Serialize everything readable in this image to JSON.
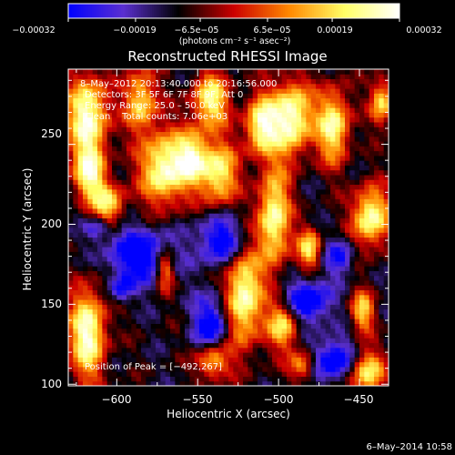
{
  "chart_data": {
    "type": "heatmap",
    "title": "Reconstructed RHESSI Image",
    "xlabel": "Heliocentric X (arcsec)",
    "ylabel": "Heliocentric Y (arcsec)",
    "xlim": [
      -630,
      -432
    ],
    "ylim": [
      99,
      297
    ],
    "x_ticks": [
      -600,
      -550,
      -500,
      -450
    ],
    "x_tick_labels": [
      "−600",
      "−550",
      "−500",
      "−450"
    ],
    "y_ticks": [
      100,
      150,
      200,
      250
    ],
    "y_tick_labels": [
      "100",
      "150",
      "200",
      "250"
    ],
    "colorbar": {
      "range": [
        -0.00032,
        0.00032
      ],
      "tick_values": [
        -0.00032,
        -0.00019,
        -6.5e-05,
        6.5e-05,
        0.00019,
        0.00032
      ],
      "tick_labels": [
        "−0.00032",
        "−0.00019",
        "−6.5e−05",
        "6.5e−05",
        "0.00019",
        "0.00032"
      ],
      "units_text": "(photons cm⁻² s⁻¹ asec⁻²)",
      "colormap": [
        "#0000ff",
        "#5a2fd0",
        "#000000",
        "#cc0000",
        "#ff8800",
        "#ffff66",
        "#ffffff"
      ]
    },
    "annotations": {
      "time_range": "8–May–2012 20:13:40.000 to 20:16:56.000",
      "detectors": "Detectors: 3F 5F 6F 7F 8F 9F, Att 0",
      "energy_range": "Energy Range: 25.0 – 50.0 keV",
      "clean_counts": "Clean    Total counts: 7.06e+03",
      "peak": "Position of Peak = [−492,267]"
    },
    "peak_position": [
      -492,
      267
    ],
    "bright_sources": [
      {
        "x": -618,
        "y": 268,
        "sx": 9,
        "sy": 18,
        "v": 0.0003
      },
      {
        "x": -617,
        "y": 232,
        "sx": 7,
        "sy": 12,
        "v": 0.00024
      },
      {
        "x": -605,
        "y": 213,
        "sx": 7,
        "sy": 9,
        "v": 0.0002
      },
      {
        "x": -618,
        "y": 132,
        "sx": 8,
        "sy": 20,
        "v": 0.0003
      },
      {
        "x": -585,
        "y": 278,
        "sx": 7,
        "sy": 14,
        "v": 0.0002
      },
      {
        "x": -571,
        "y": 235,
        "sx": 10,
        "sy": 16,
        "v": 0.0003
      },
      {
        "x": -553,
        "y": 242,
        "sx": 7,
        "sy": 12,
        "v": 0.00022
      },
      {
        "x": -570,
        "y": 172,
        "sx": 4,
        "sy": 9,
        "v": 0.00016
      },
      {
        "x": -542,
        "y": 278,
        "sx": 8,
        "sy": 12,
        "v": 0.00024
      },
      {
        "x": -537,
        "y": 232,
        "sx": 8,
        "sy": 14,
        "v": 0.00024
      },
      {
        "x": -522,
        "y": 155,
        "sx": 8,
        "sy": 22,
        "v": 0.0003
      },
      {
        "x": -511,
        "y": 262,
        "sx": 7,
        "sy": 13,
        "v": 0.00026
      },
      {
        "x": -492,
        "y": 267,
        "sx": 9,
        "sy": 16,
        "v": 0.00032
      },
      {
        "x": -503,
        "y": 204,
        "sx": 7,
        "sy": 22,
        "v": 0.00028
      },
      {
        "x": -497,
        "y": 138,
        "sx": 7,
        "sy": 11,
        "v": 0.00022
      },
      {
        "x": -466,
        "y": 262,
        "sx": 7,
        "sy": 16,
        "v": 0.00026
      },
      {
        "x": -481,
        "y": 185,
        "sx": 5,
        "sy": 9,
        "v": 0.0002
      },
      {
        "x": -443,
        "y": 205,
        "sx": 8,
        "sy": 13,
        "v": 0.00028
      },
      {
        "x": -436,
        "y": 277,
        "sx": 5,
        "sy": 10,
        "v": 0.0002
      },
      {
        "x": -448,
        "y": 146,
        "sx": 5,
        "sy": 9,
        "v": 0.00018
      },
      {
        "x": -446,
        "y": 108,
        "sx": 8,
        "sy": 10,
        "v": 0.00024
      },
      {
        "x": -541,
        "y": 115,
        "sx": 7,
        "sy": 8,
        "v": 0.0002
      },
      {
        "x": -485,
        "y": 112,
        "sx": 6,
        "sy": 7,
        "v": 0.00016
      }
    ],
    "negative_regions": [
      {
        "x": -586,
        "y": 181,
        "sx": 14,
        "sy": 12,
        "v": -0.00028
      },
      {
        "x": -612,
        "y": 198,
        "sx": 5,
        "sy": 5,
        "v": -0.00018
      },
      {
        "x": -535,
        "y": 190,
        "sx": 11,
        "sy": 11,
        "v": -0.00026
      },
      {
        "x": -541,
        "y": 138,
        "sx": 8,
        "sy": 13,
        "v": -0.00026
      },
      {
        "x": -483,
        "y": 152,
        "sx": 10,
        "sy": 10,
        "v": -0.0003
      },
      {
        "x": -466,
        "y": 115,
        "sx": 11,
        "sy": 9,
        "v": -0.00028
      },
      {
        "x": -462,
        "y": 180,
        "sx": 6,
        "sy": 8,
        "v": -0.0002
      },
      {
        "x": -597,
        "y": 160,
        "sx": 5,
        "sy": 6,
        "v": -0.00018
      }
    ]
  },
  "footer": {
    "date": "6–May–2014 10:58"
  }
}
